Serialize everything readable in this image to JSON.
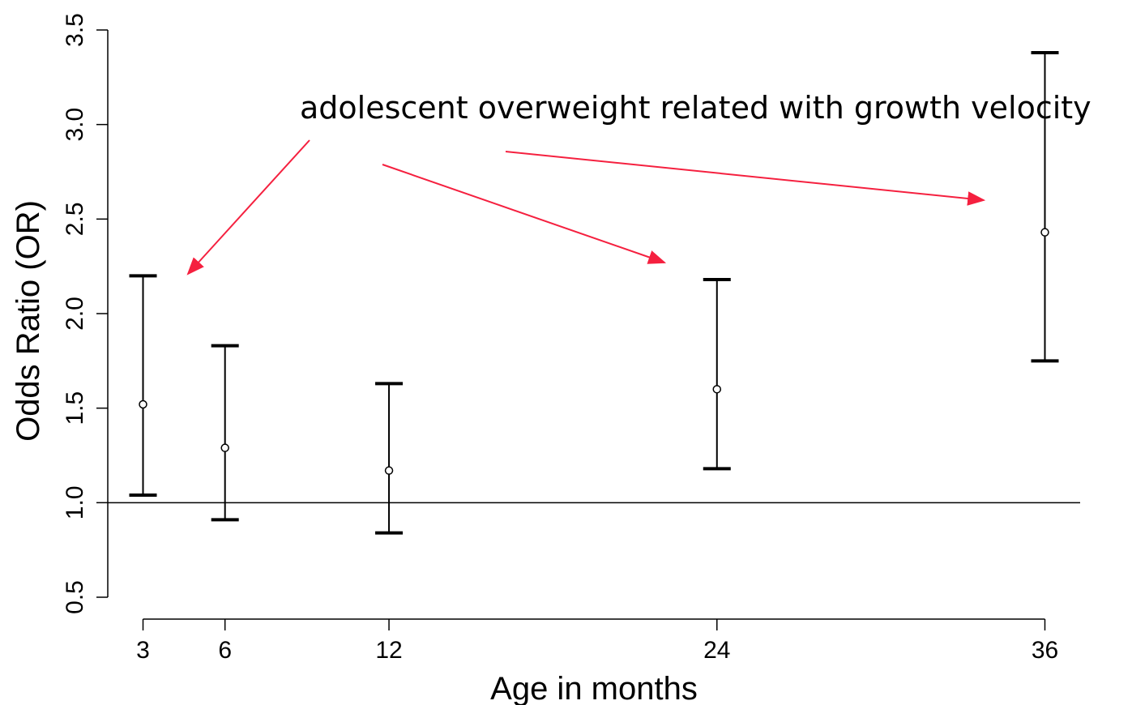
{
  "chart_data": {
    "type": "scatter",
    "subtype": "point-with-error-bars",
    "title": "",
    "xlabel": "Age in months",
    "ylabel": "Odds Ratio (OR)",
    "x_ticks": [
      3,
      6,
      12,
      24,
      36
    ],
    "x_tick_labels": [
      "3",
      "6",
      "12",
      "24",
      "36"
    ],
    "y_ticks": [
      0.5,
      1.0,
      1.5,
      2.0,
      2.5,
      3.0,
      3.5
    ],
    "y_tick_labels": [
      "0.5",
      "1.0",
      "1.5",
      "2.0",
      "2.5",
      "3.0",
      "3.5"
    ],
    "xlim": [
      1.6,
      37.5
    ],
    "ylim": [
      0.5,
      3.5
    ],
    "reference_line": 1.0,
    "grid": false,
    "points": [
      {
        "x": 3,
        "or": 1.52,
        "lower": 1.04,
        "upper": 2.2
      },
      {
        "x": 6,
        "or": 1.29,
        "lower": 0.91,
        "upper": 1.83
      },
      {
        "x": 12,
        "or": 1.17,
        "lower": 0.84,
        "upper": 1.63
      },
      {
        "x": 24,
        "or": 1.6,
        "lower": 1.18,
        "upper": 2.18
      },
      {
        "x": 36,
        "or": 2.43,
        "lower": 1.75,
        "upper": 3.38
      }
    ],
    "annotation": {
      "text": "adolescent overweight related with growth velocity",
      "arrow_color": "#f5203f",
      "arrow_targets": [
        3,
        24,
        36
      ]
    }
  }
}
